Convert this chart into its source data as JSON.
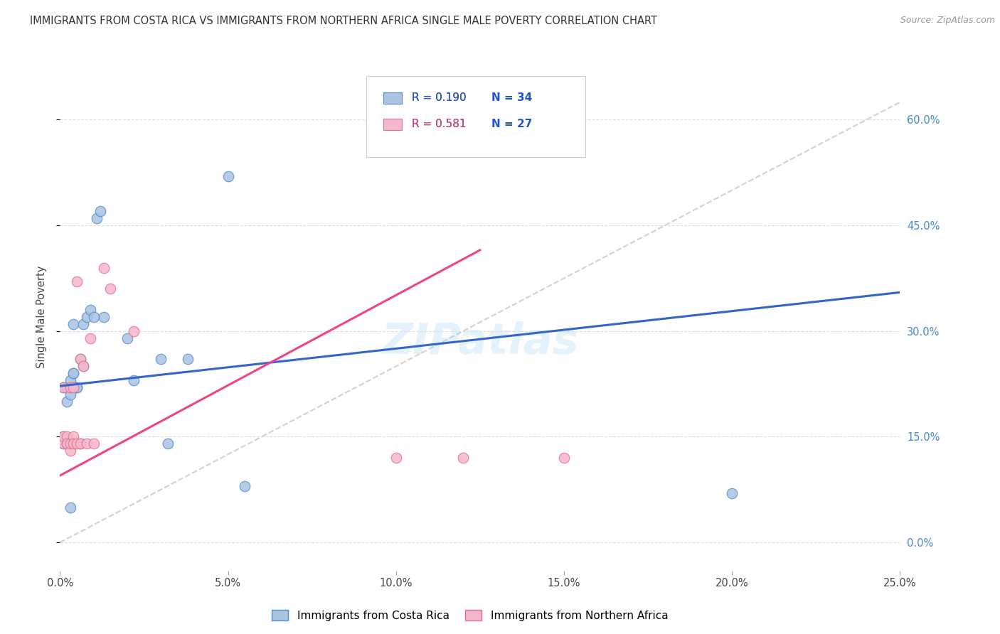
{
  "title": "IMMIGRANTS FROM COSTA RICA VS IMMIGRANTS FROM NORTHERN AFRICA SINGLE MALE POVERTY CORRELATION CHART",
  "source": "Source: ZipAtlas.com",
  "ylabel": "Single Male Poverty",
  "xlim": [
    0.0,
    0.25
  ],
  "ylim": [
    -0.04,
    0.68
  ],
  "xticks": [
    0.0,
    0.05,
    0.1,
    0.15,
    0.2,
    0.25
  ],
  "xtick_labels": [
    "0.0%",
    "5.0%",
    "10.0%",
    "15.0%",
    "20.0%",
    "25.0%"
  ],
  "yticks": [
    0.0,
    0.15,
    0.3,
    0.45,
    0.6
  ],
  "ytick_labels_right": [
    "0.0%",
    "15.0%",
    "30.0%",
    "45.0%",
    "60.0%"
  ],
  "costa_rica_color": "#aac4e2",
  "costa_rica_edge": "#5588cc",
  "northern_africa_color": "#f5b8ca",
  "northern_africa_edge": "#e07090",
  "trend_blue": "#3366cc",
  "trend_pink": "#ee4488",
  "ref_line_color": "#cccccc",
  "background_color": "#ffffff",
  "grid_color": "#dddddd",
  "legend_label_blue": "Immigrants from Costa Rica",
  "legend_label_pink": "Immigrants from Northern Africa",
  "watermark": "ZIPatlas",
  "costa_rica_x": [
    0.001,
    0.001,
    0.001,
    0.002,
    0.002,
    0.002,
    0.002,
    0.003,
    0.003,
    0.003,
    0.004,
    0.004,
    0.004,
    0.005,
    0.005,
    0.006,
    0.006,
    0.007,
    0.007,
    0.008,
    0.009,
    0.01,
    0.011,
    0.012,
    0.013,
    0.02,
    0.022,
    0.03,
    0.032,
    0.038,
    0.05,
    0.055,
    0.2,
    0.003
  ],
  "costa_rica_y": [
    0.14,
    0.15,
    0.22,
    0.14,
    0.2,
    0.22,
    0.14,
    0.14,
    0.21,
    0.23,
    0.24,
    0.31,
    0.24,
    0.22,
    0.22,
    0.26,
    0.14,
    0.25,
    0.31,
    0.32,
    0.33,
    0.32,
    0.46,
    0.47,
    0.32,
    0.29,
    0.23,
    0.26,
    0.14,
    0.26,
    0.52,
    0.08,
    0.07,
    0.05
  ],
  "northern_africa_x": [
    0.001,
    0.001,
    0.001,
    0.002,
    0.002,
    0.002,
    0.003,
    0.003,
    0.003,
    0.004,
    0.004,
    0.004,
    0.005,
    0.005,
    0.006,
    0.006,
    0.007,
    0.008,
    0.009,
    0.01,
    0.013,
    0.015,
    0.022,
    0.1,
    0.12,
    0.15
  ],
  "northern_africa_y": [
    0.14,
    0.15,
    0.22,
    0.14,
    0.15,
    0.14,
    0.13,
    0.22,
    0.14,
    0.15,
    0.22,
    0.14,
    0.37,
    0.14,
    0.14,
    0.26,
    0.25,
    0.14,
    0.29,
    0.14,
    0.39,
    0.36,
    0.3,
    0.12,
    0.12,
    0.12
  ],
  "blue_trend_x0": 0.0,
  "blue_trend_y0": 0.222,
  "blue_trend_x1": 0.25,
  "blue_trend_y1": 0.355,
  "pink_trend_x0": 0.0,
  "pink_trend_y0": 0.095,
  "pink_trend_x1": 0.125,
  "pink_trend_y1": 0.415
}
